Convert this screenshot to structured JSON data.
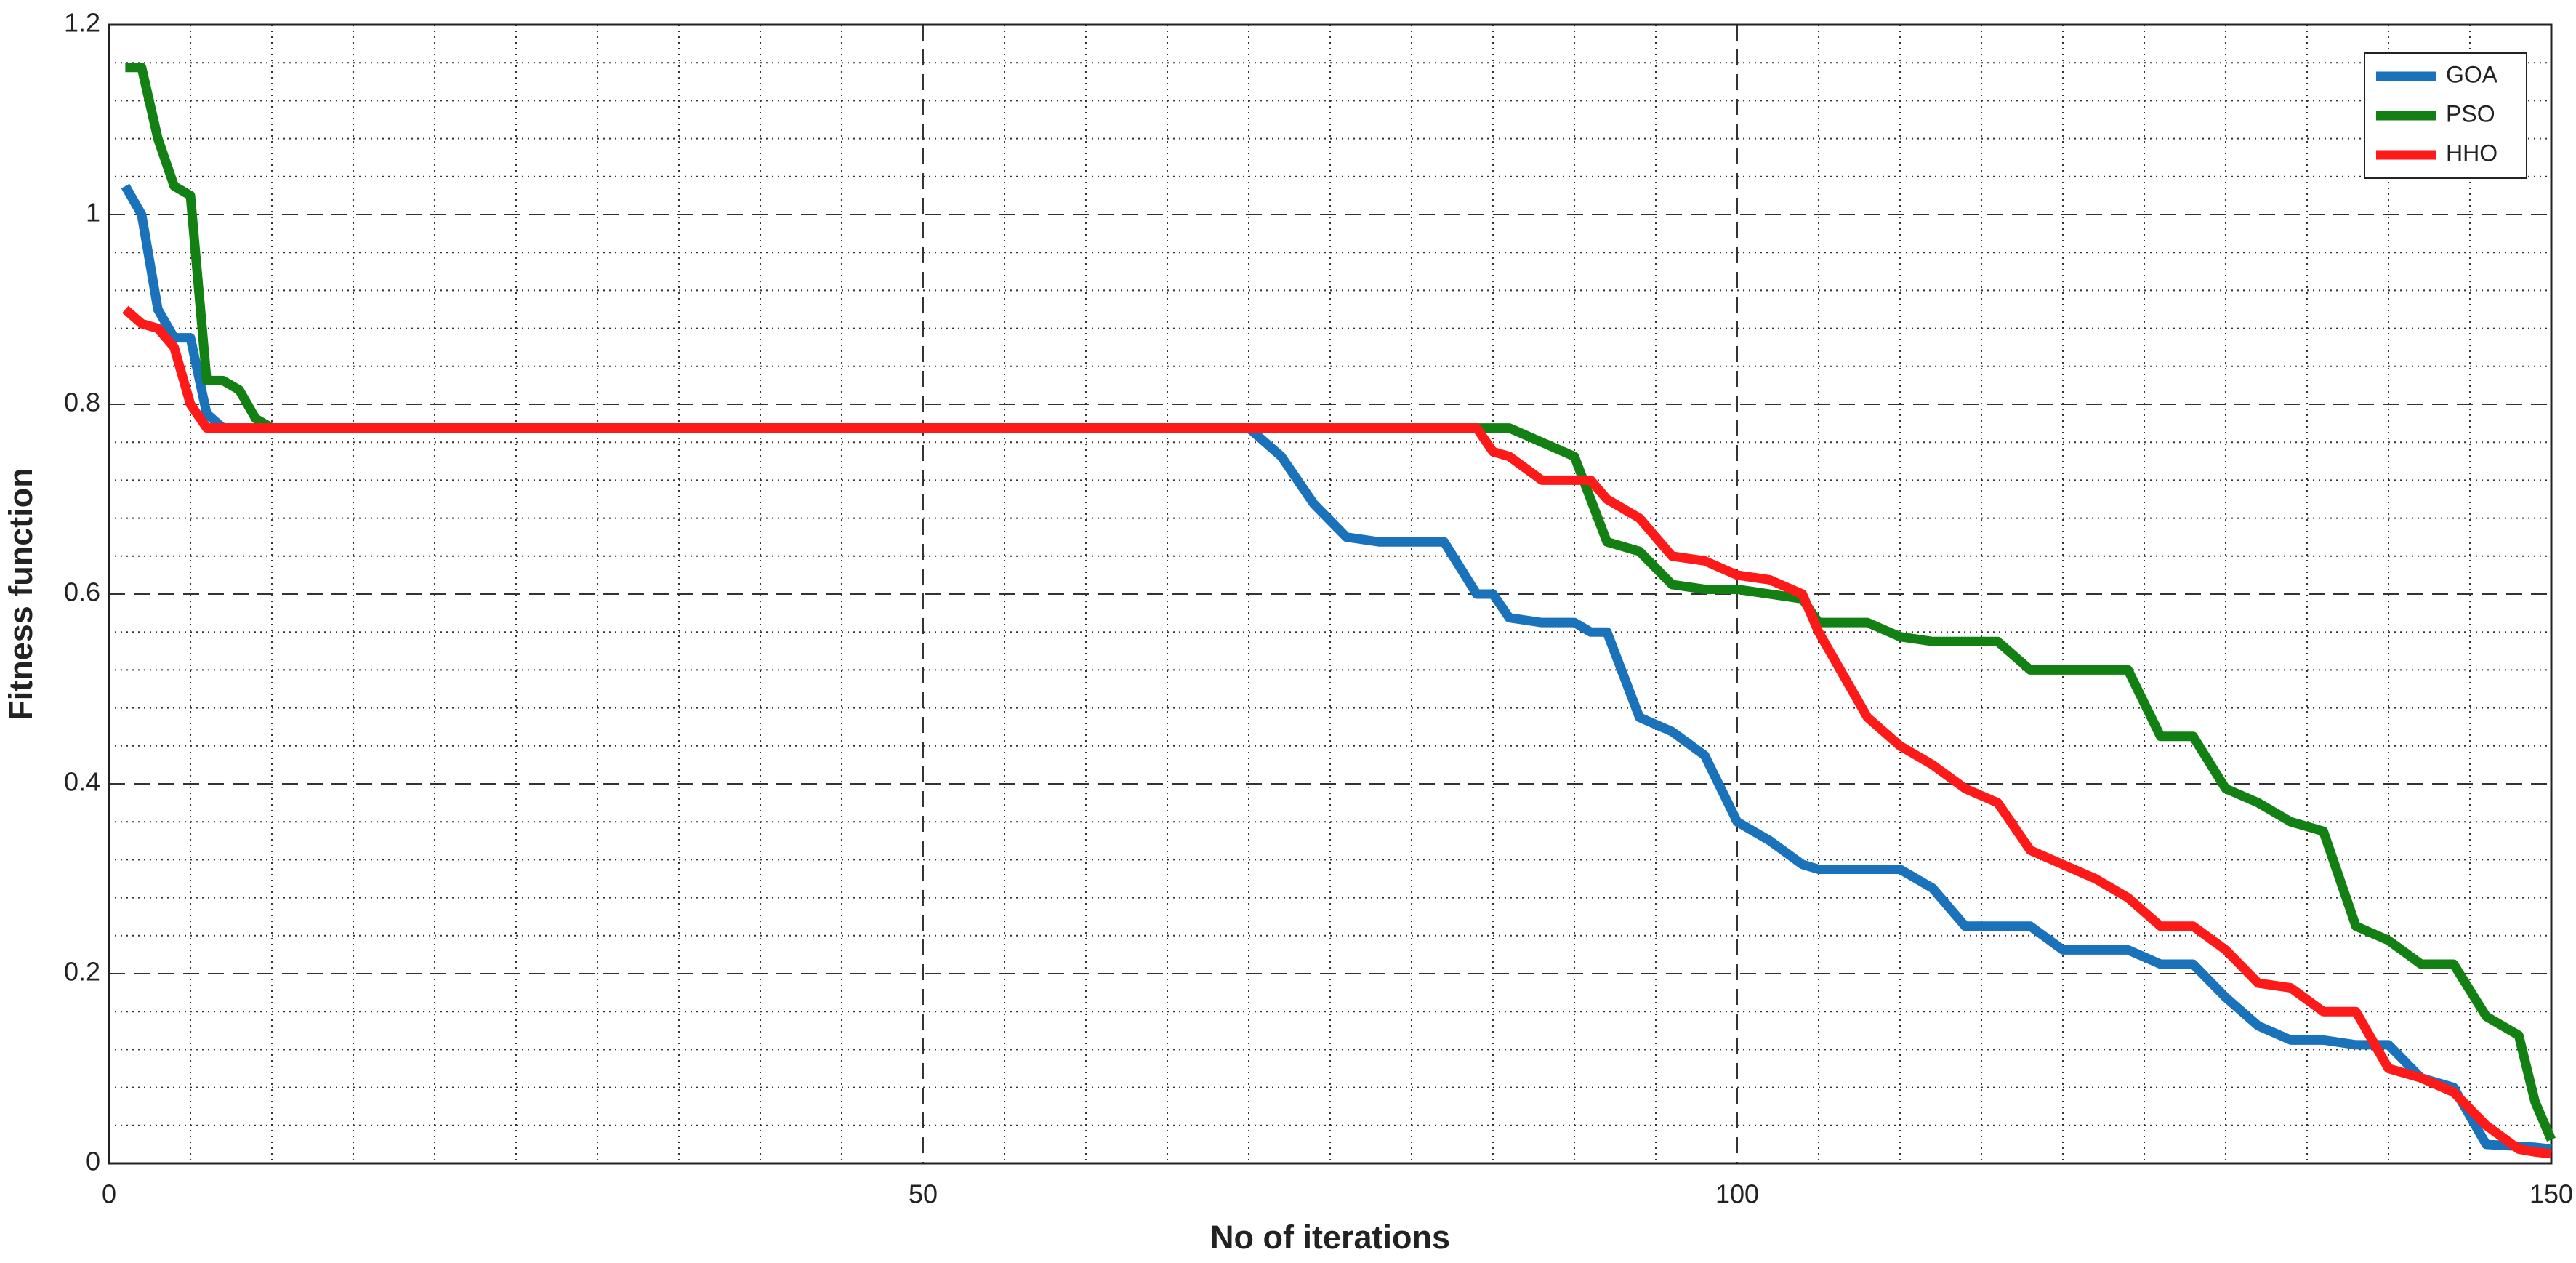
{
  "chart_data": {
    "type": "line",
    "xlabel": "No of iterations",
    "ylabel": "Fitness function",
    "x": [
      1,
      2,
      3,
      4,
      5,
      6,
      7,
      8,
      9,
      10,
      20,
      30,
      40,
      50,
      60,
      70,
      72,
      74,
      76,
      78,
      80,
      82,
      84,
      85,
      86,
      88,
      90,
      91,
      92,
      94,
      96,
      98,
      100,
      102,
      104,
      105,
      106,
      108,
      110,
      112,
      114,
      116,
      118,
      120,
      122,
      124,
      126,
      128,
      130,
      132,
      134,
      136,
      138,
      140,
      142,
      144,
      146,
      148,
      149,
      150
    ],
    "series": [
      {
        "name": "GOA",
        "color": "#1a72bb",
        "values": [
          1.03,
          1.0,
          0.9,
          0.87,
          0.87,
          0.79,
          0.775,
          0.775,
          0.775,
          0.775,
          0.775,
          0.775,
          0.775,
          0.775,
          0.775,
          0.775,
          0.745,
          0.695,
          0.66,
          0.655,
          0.655,
          0.655,
          0.6,
          0.6,
          0.575,
          0.57,
          0.57,
          0.56,
          0.56,
          0.47,
          0.455,
          0.43,
          0.36,
          0.34,
          0.315,
          0.31,
          0.31,
          0.31,
          0.31,
          0.29,
          0.25,
          0.25,
          0.25,
          0.225,
          0.225,
          0.225,
          0.21,
          0.21,
          0.175,
          0.145,
          0.13,
          0.13,
          0.125,
          0.125,
          0.09,
          0.08,
          0.02,
          0.018,
          0.017,
          0.015
        ]
      },
      {
        "name": "PSO",
        "color": "#138013",
        "values": [
          1.155,
          1.155,
          1.08,
          1.03,
          1.02,
          0.825,
          0.825,
          0.815,
          0.785,
          0.775,
          0.775,
          0.775,
          0.775,
          0.775,
          0.775,
          0.775,
          0.775,
          0.775,
          0.775,
          0.775,
          0.775,
          0.775,
          0.775,
          0.775,
          0.775,
          0.76,
          0.745,
          0.7,
          0.655,
          0.645,
          0.61,
          0.605,
          0.605,
          0.6,
          0.595,
          0.57,
          0.57,
          0.57,
          0.555,
          0.55,
          0.55,
          0.55,
          0.52,
          0.52,
          0.52,
          0.52,
          0.45,
          0.45,
          0.395,
          0.38,
          0.36,
          0.35,
          0.25,
          0.235,
          0.21,
          0.21,
          0.155,
          0.135,
          0.065,
          0.025
        ]
      },
      {
        "name": "HHO",
        "color": "#ff1a1a",
        "values": [
          0.9,
          0.885,
          0.88,
          0.86,
          0.8,
          0.775,
          0.775,
          0.775,
          0.775,
          0.775,
          0.775,
          0.775,
          0.775,
          0.775,
          0.775,
          0.775,
          0.775,
          0.775,
          0.775,
          0.775,
          0.775,
          0.775,
          0.775,
          0.75,
          0.745,
          0.72,
          0.72,
          0.72,
          0.7,
          0.68,
          0.64,
          0.635,
          0.62,
          0.615,
          0.6,
          0.56,
          0.53,
          0.47,
          0.44,
          0.42,
          0.395,
          0.38,
          0.33,
          0.315,
          0.3,
          0.28,
          0.25,
          0.25,
          0.225,
          0.19,
          0.185,
          0.16,
          0.16,
          0.1,
          0.09,
          0.075,
          0.04,
          0.015,
          0.012,
          0.01
        ]
      }
    ],
    "xlim": [
      0,
      150
    ],
    "xticks": [
      0,
      50,
      100,
      150
    ],
    "ylim": [
      0,
      1.2
    ],
    "yticks": [
      0,
      0.2,
      0.4,
      0.6,
      0.8,
      1,
      1.2
    ],
    "xminorticks": [
      5,
      10,
      15,
      20,
      25,
      30,
      35,
      40,
      45,
      55,
      60,
      65,
      70,
      75,
      80,
      85,
      90,
      95,
      105,
      110,
      115,
      120,
      125,
      130,
      135,
      140,
      145
    ],
    "yminorticks": [
      0.04,
      0.08,
      0.12,
      0.16,
      0.24,
      0.28,
      0.32,
      0.36,
      0.44,
      0.48,
      0.52,
      0.56,
      0.64,
      0.68,
      0.72,
      0.76,
      0.84,
      0.88,
      0.92,
      0.96,
      1.04,
      1.08,
      1.12,
      1.16
    ],
    "grid": true,
    "legend": "upper right"
  }
}
